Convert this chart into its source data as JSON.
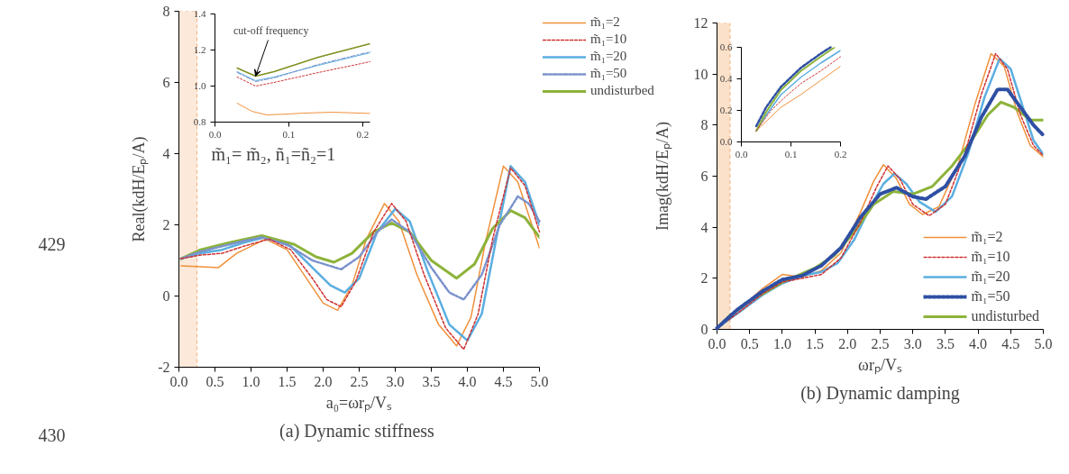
{
  "chart_data": [
    {
      "type": "line",
      "title": "(a)  Dynamic stiffness",
      "xlabel": "a₀=ωrₚ/Vₛ",
      "ylabel": "Real(kdH/Eₚ/A)",
      "xlim": [
        0,
        5
      ],
      "ylim": [
        -2,
        8
      ],
      "xticks": [
        {
          "value": 0,
          "label": "0.0"
        },
        {
          "value": 0.5,
          "label": "0.5"
        },
        {
          "value": 1,
          "label": "1.0"
        },
        {
          "value": 1.5,
          "label": "1.5"
        },
        {
          "value": 2,
          "label": "2.0"
        },
        {
          "value": 2.5,
          "label": "2.5"
        },
        {
          "value": 3,
          "label": "3.0"
        },
        {
          "value": 3.5,
          "label": "3.5"
        },
        {
          "value": 4,
          "label": "4.0"
        },
        {
          "value": 4.5,
          "label": "4.5"
        },
        {
          "value": 5,
          "label": "5.0"
        }
      ],
      "yticks": [
        -2,
        0,
        2,
        4,
        6,
        8
      ],
      "grid": false,
      "legend": "right",
      "annotations": [
        "m̃₁= m̃₂, ñ₁=ñ₂=1",
        "429",
        "430"
      ],
      "bands": [
        {
          "axis": "x",
          "from": 0,
          "to": 0.25,
          "color": "#fbe3cf"
        }
      ],
      "series": [
        {
          "name": "m̃₁=2",
          "color": "#f0913a",
          "line_style": "solid",
          "x": [
            0.03,
            0.3,
            0.55,
            0.8,
            1.2,
            1.5,
            1.8,
            2.0,
            2.2,
            2.4,
            2.6,
            2.85,
            3.05,
            3.3,
            3.6,
            3.85,
            4.05,
            4.25,
            4.5,
            4.7,
            5.0
          ],
          "values": [
            0.85,
            0.82,
            0.8,
            1.2,
            1.6,
            1.3,
            0.4,
            -0.2,
            -0.4,
            0.3,
            1.6,
            2.6,
            2.1,
            0.6,
            -0.8,
            -1.4,
            -0.6,
            1.5,
            3.65,
            3.2,
            1.35
          ]
        },
        {
          "name": "m̃₁=10",
          "color": "#d03030",
          "line_style": "dashed",
          "x": [
            0.03,
            0.3,
            0.6,
            0.9,
            1.25,
            1.55,
            1.85,
            2.05,
            2.25,
            2.45,
            2.7,
            2.95,
            3.15,
            3.4,
            3.7,
            3.95,
            4.15,
            4.35,
            4.6,
            4.8,
            5.0
          ],
          "values": [
            1.05,
            1.15,
            1.2,
            1.4,
            1.6,
            1.3,
            0.5,
            -0.1,
            -0.3,
            0.4,
            1.8,
            2.6,
            2.1,
            0.6,
            -0.9,
            -1.5,
            -0.5,
            1.6,
            3.6,
            3.1,
            1.8
          ]
        },
        {
          "name": "m̃₁=20",
          "color": "#5aaee0",
          "line_style": "solid",
          "x": [
            0.03,
            0.3,
            0.6,
            0.9,
            1.2,
            1.55,
            1.85,
            2.1,
            2.3,
            2.5,
            2.75,
            3.0,
            3.2,
            3.45,
            3.75,
            4.0,
            4.2,
            4.4,
            4.6,
            4.8,
            5.0
          ],
          "values": [
            1.05,
            1.2,
            1.3,
            1.5,
            1.65,
            1.4,
            0.8,
            0.3,
            0.1,
            0.5,
            1.8,
            2.45,
            2.1,
            0.7,
            -0.8,
            -1.25,
            -0.5,
            1.6,
            3.65,
            3.2,
            2.0
          ]
        },
        {
          "name": "m̃₁=50",
          "color": "#7b93cc",
          "line_style": "dashdot",
          "x": [
            0.03,
            0.3,
            0.6,
            0.9,
            1.15,
            1.5,
            1.85,
            2.25,
            2.5,
            2.75,
            2.95,
            3.2,
            3.5,
            3.75,
            3.95,
            4.2,
            4.45,
            4.7,
            4.85,
            5.0
          ],
          "values": [
            1.05,
            1.25,
            1.4,
            1.55,
            1.65,
            1.45,
            1.0,
            0.75,
            1.1,
            1.8,
            2.15,
            1.8,
            0.8,
            0.1,
            -0.1,
            0.6,
            2.0,
            2.8,
            2.6,
            2.1
          ]
        },
        {
          "name": "undisturbed",
          "color": "#8db33a",
          "line_style": "solid",
          "x": [
            0.03,
            0.3,
            0.7,
            1.15,
            1.6,
            1.9,
            2.15,
            2.4,
            2.7,
            2.95,
            3.2,
            3.5,
            3.85,
            4.1,
            4.35,
            4.6,
            4.8,
            5.0
          ],
          "values": [
            1.05,
            1.3,
            1.5,
            1.7,
            1.45,
            1.1,
            0.95,
            1.2,
            1.8,
            2.05,
            1.8,
            1.0,
            0.5,
            0.9,
            1.9,
            2.4,
            2.2,
            1.65
          ]
        }
      ]
    },
    {
      "type": "line",
      "xlim": [
        0,
        0.21
      ],
      "ylim": [
        0.8,
        1.4
      ],
      "xticks": [
        {
          "value": 0,
          "label": "0.0"
        },
        {
          "value": 0.1,
          "label": "0.1"
        },
        {
          "value": 0.2,
          "label": "0.2"
        }
      ],
      "yticks": [
        {
          "value": 0.8,
          "label": "0.8"
        },
        {
          "value": 1,
          "label": "1.0"
        },
        {
          "value": 1.2,
          "label": "1.2"
        },
        {
          "value": 1.4,
          "label": "1.4"
        }
      ],
      "grid": false,
      "legend": false,
      "annotations": [
        {
          "text": "cut-off frequency",
          "x": 0.055,
          "y": 1.055
        }
      ],
      "series": [
        {
          "color": "#f0913a",
          "line_style": "solid",
          "x": [
            0.03,
            0.05,
            0.07,
            0.1,
            0.12,
            0.16,
            0.21
          ],
          "values": [
            0.905,
            0.86,
            0.84,
            0.845,
            0.85,
            0.855,
            0.848
          ]
        },
        {
          "color": "#d03030",
          "line_style": "dotted",
          "x": [
            0.03,
            0.055,
            0.08,
            0.14,
            0.21
          ],
          "values": [
            1.05,
            1.0,
            1.02,
            1.075,
            1.135
          ]
        },
        {
          "color": "#5aaee0",
          "line_style": "solid",
          "x": [
            0.03,
            0.055,
            0.08,
            0.14,
            0.21
          ],
          "values": [
            1.08,
            1.03,
            1.05,
            1.115,
            1.185
          ]
        },
        {
          "color": "#7b93cc",
          "line_style": "dashdot",
          "x": [
            0.03,
            0.055,
            0.08,
            0.14,
            0.21
          ],
          "values": [
            1.075,
            1.025,
            1.045,
            1.12,
            1.19
          ]
        },
        {
          "color": "#7f8f1f",
          "line_style": "solid",
          "x": [
            0.03,
            0.055,
            0.08,
            0.14,
            0.21
          ],
          "values": [
            1.1,
            1.055,
            1.08,
            1.16,
            1.235
          ]
        }
      ]
    },
    {
      "type": "line",
      "title": "(b) Dynamic damping",
      "xlabel": "ωrₚ/Vₛ",
      "ylabel": "Imag(kdH/Eₚ/A)",
      "xlim": [
        0,
        5
      ],
      "ylim": [
        0,
        12
      ],
      "xticks": [
        {
          "value": 0,
          "label": "0.0"
        },
        {
          "value": 0.5,
          "label": "0.5"
        },
        {
          "value": 1,
          "label": "1.0"
        },
        {
          "value": 1.5,
          "label": "1.5"
        },
        {
          "value": 2,
          "label": "2.0"
        },
        {
          "value": 2.5,
          "label": "2.5"
        },
        {
          "value": 3,
          "label": "3.0"
        },
        {
          "value": 3.5,
          "label": "3.5"
        },
        {
          "value": 4,
          "label": "4.0"
        },
        {
          "value": 4.5,
          "label": "4.5"
        },
        {
          "value": 5,
          "label": "5.0"
        }
      ],
      "yticks": [
        0,
        2,
        4,
        6,
        8,
        10,
        12
      ],
      "grid": false,
      "legend": "bottom right",
      "bands": [
        {
          "axis": "x",
          "from": 0,
          "to": 0.2,
          "color": "#fbd9bd"
        }
      ],
      "series": [
        {
          "name": "m̃₁=2",
          "color": "#f0913a",
          "line_style": "solid",
          "x": [
            0,
            0.3,
            0.7,
            1.0,
            1.3,
            1.6,
            1.9,
            2.2,
            2.4,
            2.55,
            2.75,
            2.95,
            3.15,
            3.4,
            3.7,
            3.95,
            4.2,
            4.4,
            4.6,
            4.8,
            5.0
          ],
          "values": [
            0.05,
            0.7,
            1.6,
            2.15,
            2.05,
            2.3,
            3.0,
            4.6,
            5.8,
            6.45,
            5.9,
            4.9,
            4.5,
            4.8,
            6.5,
            8.8,
            10.8,
            10.3,
            8.5,
            7.2,
            6.75
          ]
        },
        {
          "name": "m̃₁=10",
          "color": "#d03030",
          "line_style": "dashed",
          "x": [
            0,
            0.3,
            0.7,
            1.0,
            1.3,
            1.6,
            1.9,
            2.2,
            2.45,
            2.62,
            2.8,
            3.0,
            3.25,
            3.5,
            3.8,
            4.05,
            4.27,
            4.45,
            4.65,
            4.85,
            5.0
          ],
          "values": [
            0.05,
            0.6,
            1.4,
            1.85,
            2.0,
            2.15,
            2.8,
            4.2,
            5.6,
            6.4,
            5.9,
            4.9,
            4.45,
            4.9,
            6.9,
            9.2,
            10.8,
            10.2,
            8.4,
            7.2,
            6.8
          ]
        },
        {
          "name": "m̃₁=20",
          "color": "#5aaee0",
          "line_style": "solid",
          "x": [
            0,
            0.3,
            0.7,
            1.0,
            1.3,
            1.6,
            1.85,
            2.1,
            2.35,
            2.55,
            2.72,
            2.9,
            3.1,
            3.35,
            3.6,
            3.85,
            4.1,
            4.33,
            4.5,
            4.7,
            4.85,
            5.0
          ],
          "values": [
            0.05,
            0.6,
            1.35,
            1.8,
            2.1,
            2.25,
            2.6,
            3.5,
            4.8,
            5.7,
            6.1,
            5.7,
            5.0,
            4.6,
            5.2,
            6.9,
            9.1,
            10.6,
            10.2,
            8.6,
            7.4,
            6.85
          ]
        },
        {
          "name": "m̃₁=50",
          "color": "#2e4fa3",
          "line_style": "dashed",
          "x": [
            0,
            0.3,
            0.7,
            1.0,
            1.3,
            1.6,
            1.9,
            2.2,
            2.5,
            2.75,
            3.0,
            3.2,
            3.5,
            3.8,
            4.05,
            4.3,
            4.45,
            4.65,
            4.85,
            5.0
          ],
          "values": [
            0.05,
            0.75,
            1.5,
            1.95,
            2.1,
            2.5,
            3.2,
            4.4,
            5.3,
            5.55,
            5.2,
            5.1,
            5.6,
            6.8,
            8.3,
            9.4,
            9.4,
            8.7,
            8.0,
            7.6
          ]
        },
        {
          "name": "undisturbed",
          "color": "#8db33a",
          "line_style": "solid",
          "x": [
            0,
            0.2,
            0.5,
            1.0,
            1.5,
            1.8,
            2.1,
            2.4,
            2.7,
            3.0,
            3.3,
            3.6,
            3.9,
            4.15,
            4.35,
            4.55,
            4.8,
            5.0
          ],
          "values": [
            0.05,
            0.55,
            1.1,
            1.85,
            2.4,
            2.9,
            3.8,
            4.9,
            5.4,
            5.3,
            5.6,
            6.4,
            7.4,
            8.4,
            8.9,
            8.7,
            8.2,
            8.2
          ]
        }
      ]
    },
    {
      "type": "line",
      "xlim": [
        0,
        0.2
      ],
      "ylim": [
        0,
        0.6
      ],
      "xticks": [
        {
          "value": 0,
          "label": "0.0"
        },
        0.1,
        0.2
      ],
      "yticks": [
        {
          "value": 0,
          "label": "0.0"
        },
        0.2,
        0.4,
        0.6
      ],
      "grid": false,
      "legend": false,
      "series": [
        {
          "color": "#f0913a",
          "line_style": "solid",
          "x": [
            0.03,
            0.08,
            0.12,
            0.16,
            0.2
          ],
          "values": [
            0.07,
            0.22,
            0.3,
            0.39,
            0.48
          ]
        },
        {
          "color": "#d03030",
          "line_style": "dotted",
          "x": [
            0.03,
            0.06,
            0.09,
            0.12,
            0.16,
            0.2
          ],
          "values": [
            0.07,
            0.2,
            0.29,
            0.37,
            0.45,
            0.54
          ]
        },
        {
          "color": "#5aaee0",
          "line_style": "solid",
          "x": [
            0.03,
            0.05,
            0.08,
            0.12,
            0.16,
            0.2
          ],
          "values": [
            0.07,
            0.17,
            0.3,
            0.41,
            0.5,
            0.58
          ]
        },
        {
          "color": "#2e4fa3",
          "line_style": "dashed",
          "x": [
            0.03,
            0.05,
            0.08,
            0.12,
            0.16,
            0.18
          ],
          "values": [
            0.1,
            0.22,
            0.35,
            0.47,
            0.56,
            0.6
          ]
        },
        {
          "color": "#8db33a",
          "line_style": "solid",
          "x": [
            0.03,
            0.05,
            0.08,
            0.12,
            0.16,
            0.188
          ],
          "values": [
            0.07,
            0.19,
            0.33,
            0.45,
            0.54,
            0.6
          ]
        }
      ]
    }
  ]
}
